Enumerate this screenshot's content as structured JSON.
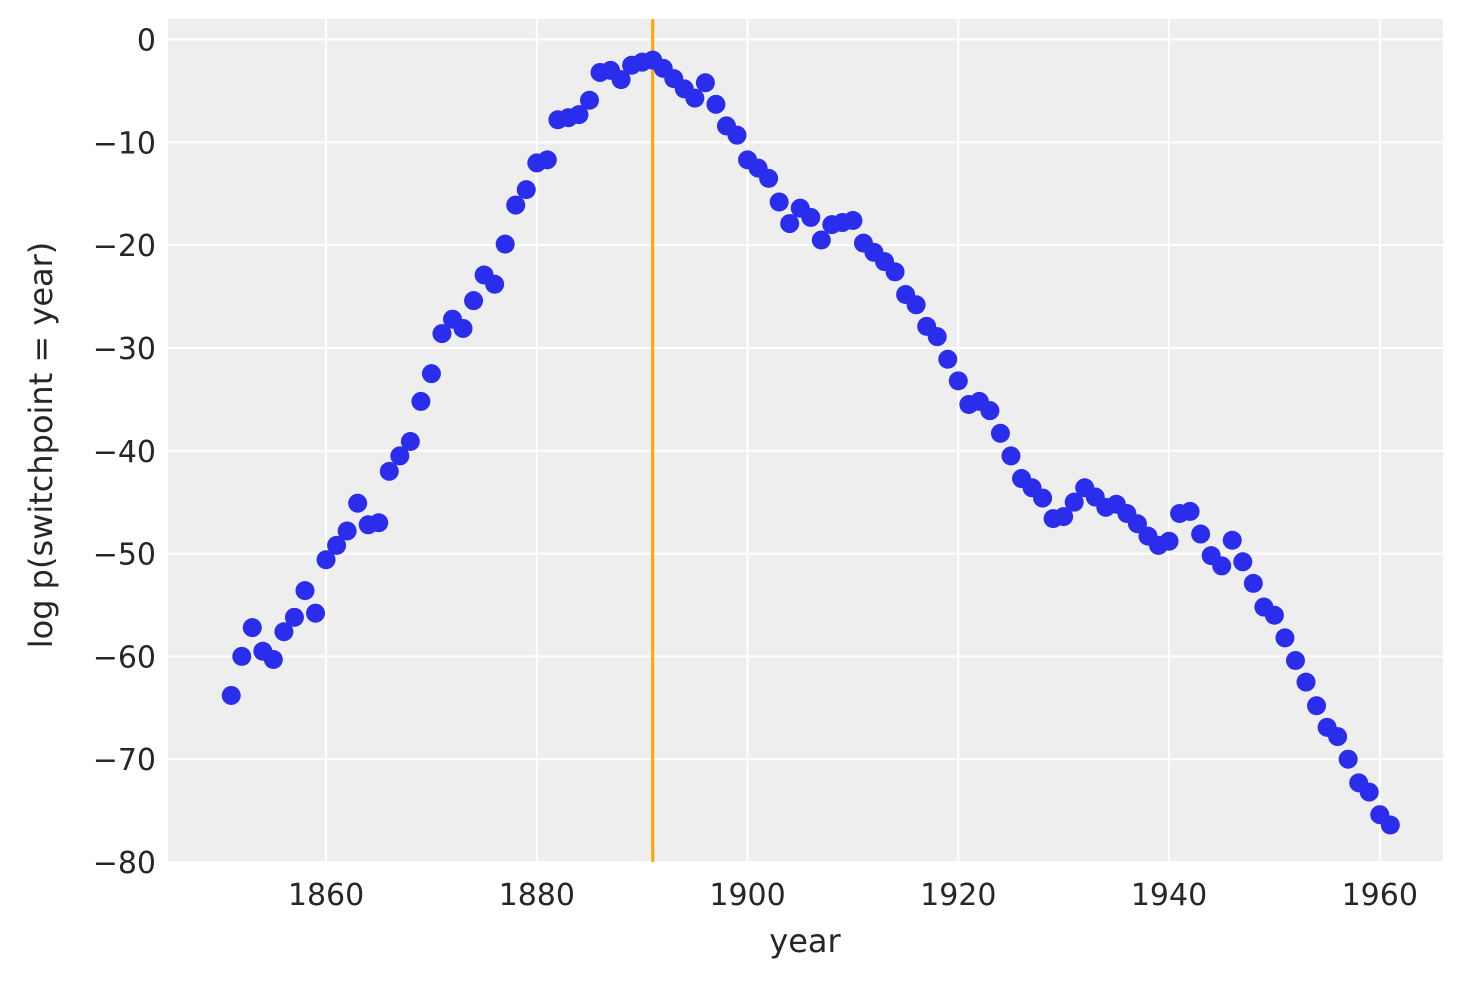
{
  "chart_data": {
    "type": "scatter",
    "title": "",
    "xlabel": "year",
    "ylabel": "log p(switchpoint = year)",
    "xlim": [
      1845,
      1966
    ],
    "ylim": [
      -80,
      2
    ],
    "x_ticks": [
      1860,
      1880,
      1900,
      1920,
      1940,
      1960
    ],
    "y_ticks": [
      0,
      -10,
      -20,
      -30,
      -40,
      -50,
      -60,
      -70,
      -80
    ],
    "x_tick_labels": [
      "1860",
      "1880",
      "1900",
      "1920",
      "1940",
      "1960"
    ],
    "y_tick_labels": [
      "0",
      "−10",
      "−20",
      "−30",
      "−40",
      "−50",
      "−60",
      "−70",
      "−80"
    ],
    "grid": true,
    "colors": {
      "points": "#2a2eec",
      "vline": "#ffa500",
      "plot_background": "#eeeeee",
      "grid": "#ffffff"
    },
    "vline_x": 1891,
    "series": [
      {
        "x": [
          1851,
          1852,
          1853,
          1854,
          1855,
          1856,
          1857,
          1858,
          1859,
          1860,
          1861,
          1862,
          1863,
          1864,
          1865,
          1866,
          1867,
          1868,
          1869,
          1870,
          1871,
          1872,
          1873,
          1874,
          1875,
          1876,
          1877,
          1878,
          1879,
          1880,
          1881,
          1882,
          1883,
          1884,
          1885,
          1886,
          1887,
          1888,
          1889,
          1890,
          1891,
          1892,
          1893,
          1894,
          1895,
          1896,
          1897,
          1898,
          1899,
          1900,
          1901,
          1902,
          1903,
          1904,
          1905,
          1906,
          1907,
          1908,
          1909,
          1910,
          1911,
          1912,
          1913,
          1914,
          1915,
          1916,
          1917,
          1918,
          1919,
          1920,
          1921,
          1922,
          1923,
          1924,
          1925,
          1926,
          1927,
          1928,
          1929,
          1930,
          1931,
          1932,
          1933,
          1934,
          1935,
          1936,
          1937,
          1938,
          1939,
          1940,
          1941,
          1942,
          1943,
          1944,
          1945,
          1946,
          1947,
          1948,
          1949,
          1950,
          1951,
          1952,
          1953,
          1954,
          1955,
          1956,
          1957,
          1958,
          1959,
          1960,
          1961
        ],
        "y": [
          -63.8,
          -60.0,
          -57.2,
          -59.5,
          -60.3,
          -57.6,
          -56.2,
          -53.6,
          -55.8,
          -50.6,
          -49.2,
          -47.8,
          -45.1,
          -47.2,
          -47.0,
          -42.0,
          -40.5,
          -39.1,
          -35.2,
          -32.5,
          -28.6,
          -27.2,
          -28.1,
          -25.4,
          -22.9,
          -23.8,
          -19.9,
          -16.1,
          -14.6,
          -12.0,
          -11.7,
          -7.8,
          -7.6,
          -7.3,
          -5.9,
          -3.2,
          -3.0,
          -3.9,
          -2.5,
          -2.2,
          -2.0,
          -2.8,
          -3.8,
          -4.8,
          -5.7,
          -4.2,
          -6.3,
          -8.4,
          -9.3,
          -11.7,
          -12.5,
          -13.5,
          -15.8,
          -17.9,
          -16.4,
          -17.3,
          -19.5,
          -18.0,
          -17.8,
          -17.6,
          -19.8,
          -20.7,
          -21.6,
          -22.6,
          -24.8,
          -25.8,
          -27.9,
          -28.9,
          -31.1,
          -33.2,
          -35.5,
          -35.2,
          -36.1,
          -38.3,
          -40.5,
          -42.7,
          -43.6,
          -44.6,
          -46.6,
          -46.4,
          -45.0,
          -43.6,
          -44.5,
          -45.5,
          -45.2,
          -46.1,
          -47.1,
          -48.3,
          -49.2,
          -48.8,
          -46.1,
          -45.9,
          -48.1,
          -50.2,
          -51.2,
          -48.7,
          -50.8,
          -52.9,
          -55.2,
          -56.0,
          -58.2,
          -60.4,
          -62.5,
          -64.8,
          -66.9,
          -67.8,
          -70.0,
          -72.3,
          -73.2,
          -75.4,
          -76.4
        ]
      }
    ]
  }
}
